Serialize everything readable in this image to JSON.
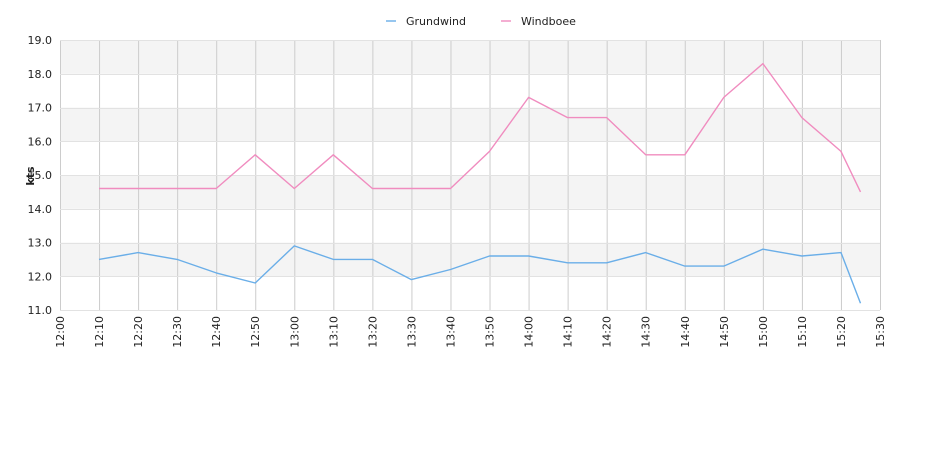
{
  "chart_data": {
    "type": "line",
    "ylabel": "kts",
    "ylim": [
      11.0,
      19.0
    ],
    "yticks": [
      "11.0",
      "12.0",
      "13.0",
      "14.0",
      "15.0",
      "16.0",
      "17.0",
      "18.0",
      "19.0"
    ],
    "xlim": [
      "12:00",
      "15:30"
    ],
    "xticks": [
      "12:00",
      "12:10",
      "12:20",
      "12:30",
      "12:40",
      "12:50",
      "13:00",
      "13:10",
      "13:20",
      "13:30",
      "13:40",
      "13:50",
      "14:00",
      "14:10",
      "14:20",
      "14:30",
      "14:40",
      "14:50",
      "15:00",
      "15:10",
      "15:20",
      "15:30"
    ],
    "grid": true,
    "legend": "top-center",
    "x": [
      "12:10",
      "12:20",
      "12:30",
      "12:40",
      "12:50",
      "13:00",
      "13:10",
      "13:20",
      "13:30",
      "13:40",
      "13:50",
      "14:00",
      "14:10",
      "14:20",
      "14:30",
      "14:40",
      "14:50",
      "15:00",
      "15:10",
      "15:20",
      "15:25"
    ],
    "series": [
      {
        "name": "Grundwind",
        "color": "#6aaee8",
        "values": [
          12.5,
          12.7,
          12.5,
          12.1,
          11.8,
          12.9,
          12.5,
          12.5,
          11.9,
          12.2,
          12.6,
          12.6,
          12.4,
          12.4,
          12.7,
          12.3,
          12.3,
          12.8,
          12.6,
          12.7,
          11.2
        ]
      },
      {
        "name": "Windboee",
        "color": "#f08cbf",
        "values": [
          14.6,
          14.6,
          14.6,
          14.6,
          15.6,
          14.6,
          15.6,
          14.6,
          14.6,
          14.6,
          15.7,
          17.3,
          16.7,
          16.7,
          15.6,
          15.6,
          17.3,
          18.3,
          16.7,
          15.7,
          14.5
        ]
      }
    ]
  }
}
